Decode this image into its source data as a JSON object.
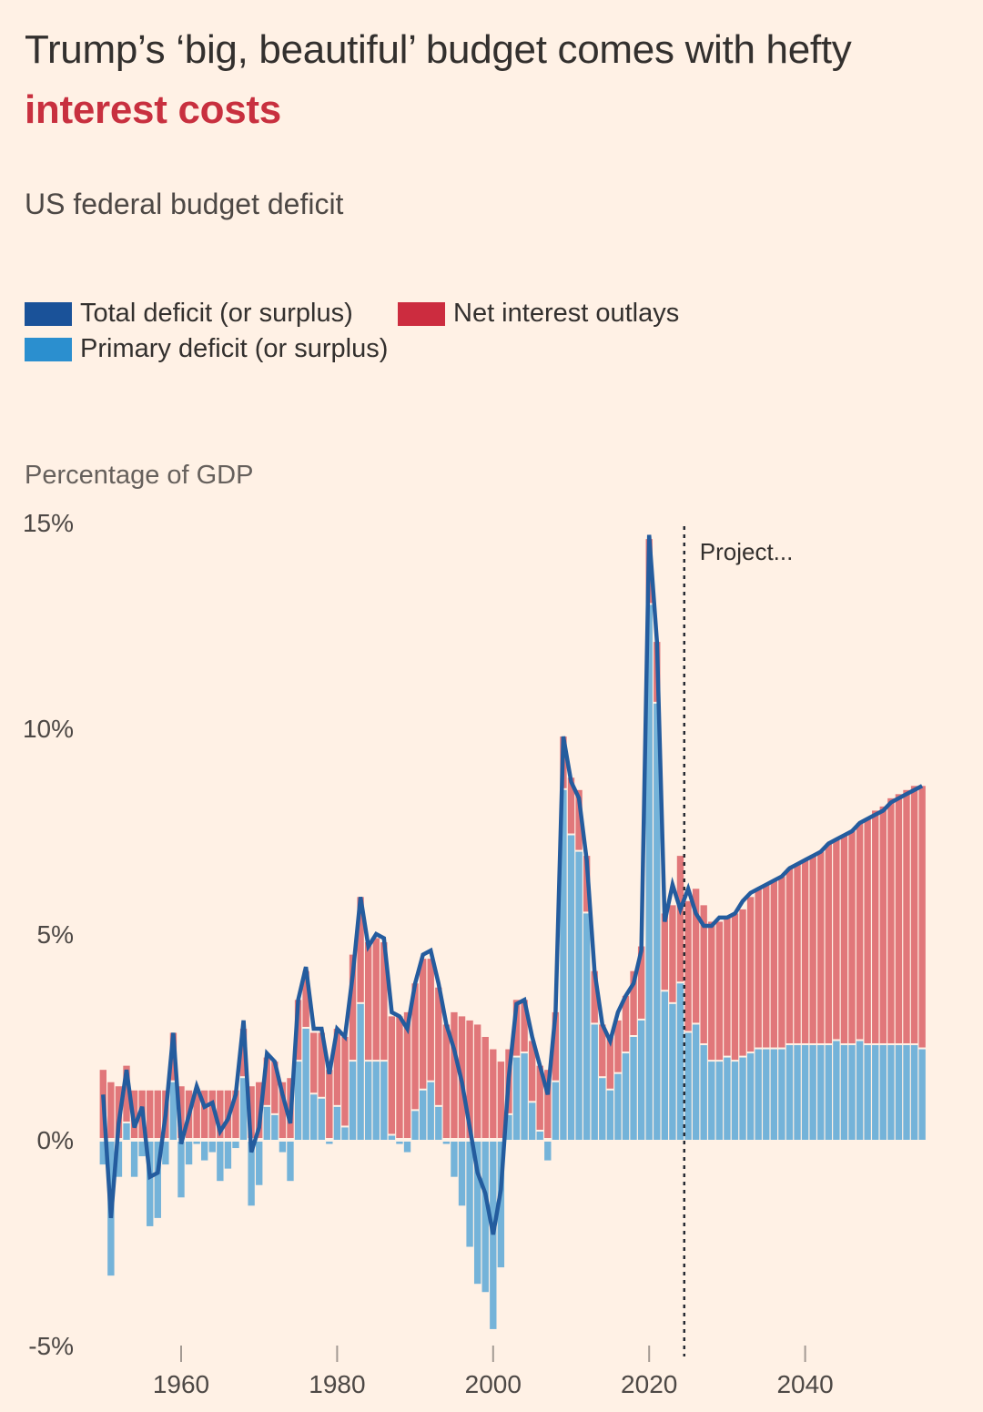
{
  "header": {
    "title_part1": "Trump’s ‘big, beautiful’ budget comes with hefty ",
    "title_part2": "interest costs",
    "subtitle": "US federal budget deficit"
  },
  "legend": {
    "items": [
      {
        "label": "Total deficit (or surplus)",
        "color": "#1a5299"
      },
      {
        "label": "Net interest outlays",
        "color": "#cc2c3f"
      },
      {
        "label": "Primary deficit (or surplus)",
        "color": "#2b8fcf"
      }
    ]
  },
  "colors": {
    "background": "#fff1e5",
    "total_line": "#245c9e",
    "primary_bar": "#74b3d9",
    "interest_bar": "#e1777a",
    "projection_line": "#262a33"
  },
  "chart_data": {
    "type": "bar",
    "title": "Trump’s ‘big, beautiful’ budget comes with hefty interest costs",
    "subtitle": "US federal budget deficit",
    "ylabel": "Percentage of GDP",
    "xlabel": "",
    "ylim": [
      -5,
      15
    ],
    "xlim": [
      1950,
      2055
    ],
    "yticks": [
      15,
      10,
      5,
      0,
      -5
    ],
    "ytick_labels": [
      "15%",
      "10%",
      "5%",
      "0%",
      "-5%"
    ],
    "xticks": [
      1960,
      1980,
      2000,
      2020,
      2040
    ],
    "xtick_labels": [
      "1960",
      "1980",
      "2000",
      "2020",
      "2040"
    ],
    "grid": false,
    "legend_position": "top-left",
    "annotation": {
      "label": "Project...",
      "x": 2024.5,
      "style": "dotted vertical line"
    },
    "x": [
      1950,
      1951,
      1952,
      1953,
      1954,
      1955,
      1956,
      1957,
      1958,
      1959,
      1960,
      1961,
      1962,
      1963,
      1964,
      1965,
      1966,
      1967,
      1968,
      1969,
      1970,
      1971,
      1972,
      1973,
      1974,
      1975,
      1976,
      1977,
      1978,
      1979,
      1980,
      1981,
      1982,
      1983,
      1984,
      1985,
      1986,
      1987,
      1988,
      1989,
      1990,
      1991,
      1992,
      1993,
      1994,
      1995,
      1996,
      1997,
      1998,
      1999,
      2000,
      2001,
      2002,
      2003,
      2004,
      2005,
      2006,
      2007,
      2008,
      2009,
      2010,
      2011,
      2012,
      2013,
      2014,
      2015,
      2016,
      2017,
      2018,
      2019,
      2020,
      2021,
      2022,
      2023,
      2024,
      2025,
      2026,
      2027,
      2028,
      2029,
      2030,
      2031,
      2032,
      2033,
      2034,
      2035,
      2036,
      2037,
      2038,
      2039,
      2040,
      2041,
      2042,
      2043,
      2044,
      2045,
      2046,
      2047,
      2048,
      2049,
      2050,
      2051,
      2052,
      2053,
      2054,
      2055
    ],
    "series": [
      {
        "name": "Primary deficit (or surplus)",
        "kind": "bar",
        "values": [
          -0.6,
          -3.3,
          -0.9,
          0.4,
          -0.9,
          -0.4,
          -2.1,
          -1.9,
          -0.6,
          1.4,
          -1.4,
          -0.6,
          -0.1,
          -0.5,
          -0.3,
          -1.0,
          -0.7,
          -0.2,
          1.5,
          -1.6,
          -1.1,
          0.8,
          0.6,
          -0.3,
          -1.0,
          1.9,
          2.7,
          1.1,
          1.0,
          -0.1,
          0.8,
          0.3,
          1.9,
          3.3,
          1.9,
          1.9,
          1.9,
          0.1,
          -0.1,
          -0.3,
          0.7,
          1.2,
          1.4,
          0.8,
          -0.1,
          -0.9,
          -1.6,
          -2.6,
          -3.5,
          -3.7,
          -4.6,
          -3.1,
          0.6,
          2.0,
          2.1,
          0.9,
          0.2,
          -0.5,
          1.4,
          8.5,
          7.4,
          7.0,
          5.5,
          2.8,
          1.5,
          1.2,
          1.6,
          2.1,
          2.5,
          2.9,
          13.0,
          10.6,
          3.6,
          3.3,
          3.8,
          2.6,
          2.8,
          2.3,
          1.9,
          1.9,
          2.0,
          1.9,
          2.0,
          2.1,
          2.2,
          2.2,
          2.2,
          2.2,
          2.3,
          2.3,
          2.3,
          2.3,
          2.3,
          2.3,
          2.4,
          2.3,
          2.3,
          2.4,
          2.3,
          2.3,
          2.3,
          2.3,
          2.3,
          2.3,
          2.3,
          2.2
        ]
      },
      {
        "name": "Net interest outlays",
        "kind": "stacked-bar",
        "values": [
          1.7,
          1.4,
          1.3,
          1.4,
          1.2,
          1.2,
          1.2,
          1.2,
          1.2,
          1.2,
          1.3,
          1.2,
          1.2,
          1.2,
          1.2,
          1.2,
          1.2,
          1.2,
          1.2,
          1.3,
          1.4,
          1.2,
          1.3,
          1.4,
          1.5,
          1.5,
          1.4,
          1.5,
          1.6,
          1.7,
          1.9,
          2.2,
          2.6,
          2.6,
          2.9,
          3.0,
          2.9,
          2.9,
          3.0,
          3.1,
          3.1,
          3.2,
          3.0,
          2.9,
          2.8,
          3.1,
          3.0,
          2.9,
          2.8,
          2.5,
          2.2,
          1.9,
          1.6,
          1.4,
          1.3,
          1.5,
          1.6,
          1.7,
          1.7,
          1.3,
          1.4,
          1.5,
          1.4,
          1.3,
          1.3,
          1.3,
          1.3,
          1.4,
          1.6,
          1.8,
          1.6,
          1.5,
          1.9,
          2.4,
          3.1,
          3.2,
          3.3,
          3.4,
          3.4,
          3.4,
          3.4,
          3.6,
          3.6,
          3.8,
          3.9,
          4.0,
          4.1,
          4.2,
          4.3,
          4.4,
          4.5,
          4.6,
          4.7,
          4.9,
          4.9,
          5.1,
          5.2,
          5.3,
          5.5,
          5.7,
          5.8,
          6.0,
          6.1,
          6.2,
          6.3,
          6.4
        ]
      },
      {
        "name": "Total deficit (or surplus)",
        "kind": "line",
        "values": [
          1.1,
          -1.9,
          0.4,
          1.7,
          0.3,
          0.8,
          -0.9,
          -0.8,
          0.6,
          2.6,
          -0.1,
          0.6,
          1.3,
          0.8,
          0.9,
          0.2,
          0.5,
          1.1,
          2.9,
          -0.3,
          0.3,
          2.1,
          1.9,
          1.1,
          0.4,
          3.4,
          4.2,
          2.7,
          2.7,
          1.6,
          2.7,
          2.5,
          4.0,
          5.9,
          4.7,
          5.0,
          4.9,
          3.1,
          3.0,
          2.7,
          3.8,
          4.5,
          4.6,
          3.8,
          2.8,
          2.2,
          1.4,
          0.3,
          -0.8,
          -1.3,
          -2.3,
          -1.2,
          1.5,
          3.3,
          3.4,
          2.5,
          1.8,
          1.1,
          3.1,
          9.8,
          8.7,
          8.3,
          6.8,
          4.1,
          2.8,
          2.4,
          3.1,
          3.5,
          3.8,
          4.6,
          14.7,
          12.1,
          5.3,
          6.2,
          5.6,
          6.1,
          5.5,
          5.2,
          5.2,
          5.4,
          5.4,
          5.5,
          5.8,
          6.0,
          6.1,
          6.2,
          6.3,
          6.4,
          6.6,
          6.7,
          6.8,
          6.9,
          7.0,
          7.2,
          7.3,
          7.4,
          7.5,
          7.7,
          7.8,
          7.9,
          8.0,
          8.2,
          8.3,
          8.4,
          8.5,
          8.6
        ]
      }
    ]
  }
}
